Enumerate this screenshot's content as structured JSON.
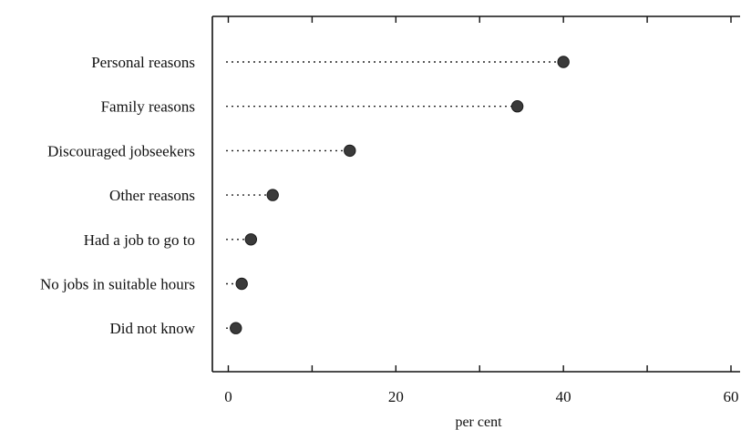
{
  "chart_data": {
    "type": "dot",
    "title": "",
    "xlabel": "per cent",
    "ylabel": "",
    "xlim": [
      -1.5,
      61
    ],
    "x_ticks": [
      0,
      20,
      40,
      60
    ],
    "x_minor_ticks": [
      10,
      30,
      50
    ],
    "categories": [
      "Personal reasons",
      "Family reasons",
      "Discouraged jobseekers",
      "Other reasons",
      "Had a job to go to",
      "No jobs in suitable hours",
      "Did not know"
    ],
    "values": [
      40,
      34.5,
      14.5,
      5.3,
      2.7,
      1.6,
      0.9
    ],
    "colors": {
      "marker": "#3a3a3a",
      "axis": "#111111",
      "leader": "#222222"
    },
    "grid": false,
    "leader_lines": "dotted"
  }
}
